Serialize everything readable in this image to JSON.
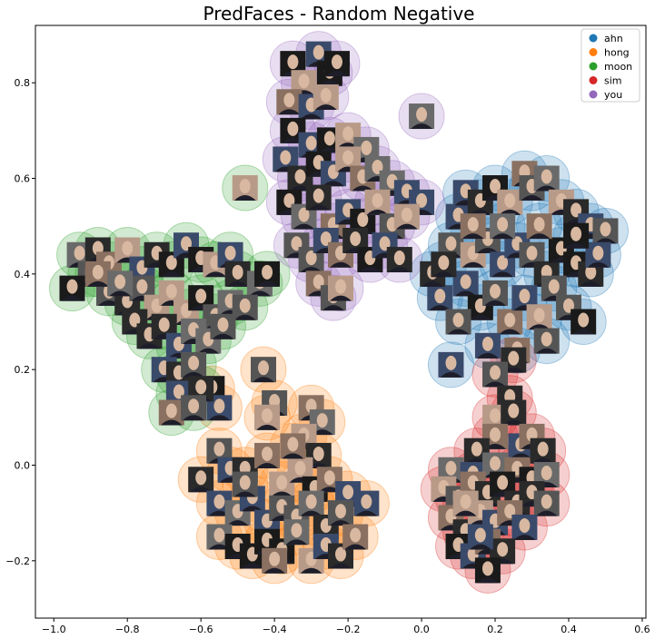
{
  "chart_data": {
    "type": "scatter",
    "title": "PredFaces - Random Negative",
    "xlim": [
      -1.05,
      0.61
    ],
    "ylim": [
      -0.32,
      0.92
    ],
    "x_ticks": [
      -1.0,
      -0.8,
      -0.6,
      -0.4,
      -0.2,
      0.0,
      0.2,
      0.4,
      0.6
    ],
    "y_ticks": [
      -0.2,
      0.0,
      0.2,
      0.4,
      0.6,
      0.8
    ],
    "x_tick_labels": [
      "−1.0",
      "−0.8",
      "−0.6",
      "−0.4",
      "−0.2",
      "0.0",
      "0.2",
      "0.4",
      "0.6"
    ],
    "y_tick_labels": [
      "−0.2",
      "0.0",
      "0.2",
      "0.4",
      "0.6",
      "0.8"
    ],
    "legend_position": "top-right",
    "series": [
      {
        "name": "ahn",
        "color": "#1f77b4",
        "points": [
          [
            0.08,
            0.21
          ],
          [
            0.05,
            0.35
          ],
          [
            0.03,
            0.4
          ],
          [
            0.08,
            0.46
          ],
          [
            0.1,
            0.52
          ],
          [
            0.12,
            0.57
          ],
          [
            0.16,
            0.55
          ],
          [
            0.2,
            0.58
          ],
          [
            0.24,
            0.55
          ],
          [
            0.28,
            0.61
          ],
          [
            0.3,
            0.58
          ],
          [
            0.34,
            0.6
          ],
          [
            0.38,
            0.55
          ],
          [
            0.42,
            0.53
          ],
          [
            0.46,
            0.5
          ],
          [
            0.5,
            0.49
          ],
          [
            0.14,
            0.44
          ],
          [
            0.18,
            0.47
          ],
          [
            0.22,
            0.42
          ],
          [
            0.26,
            0.46
          ],
          [
            0.3,
            0.44
          ],
          [
            0.34,
            0.4
          ],
          [
            0.38,
            0.45
          ],
          [
            0.42,
            0.42
          ],
          [
            0.46,
            0.4
          ],
          [
            0.12,
            0.38
          ],
          [
            0.16,
            0.33
          ],
          [
            0.2,
            0.36
          ],
          [
            0.24,
            0.3
          ],
          [
            0.28,
            0.35
          ],
          [
            0.32,
            0.31
          ],
          [
            0.36,
            0.37
          ],
          [
            0.4,
            0.33
          ],
          [
            0.44,
            0.3
          ],
          [
            0.48,
            0.44
          ],
          [
            0.1,
            0.3
          ],
          [
            0.18,
            0.25
          ],
          [
            0.26,
            0.24
          ],
          [
            0.34,
            0.26
          ],
          [
            0.22,
            0.5
          ],
          [
            0.32,
            0.5
          ],
          [
            0.14,
            0.5
          ],
          [
            0.06,
            0.42
          ],
          [
            0.42,
            0.48
          ]
        ]
      },
      {
        "name": "hong",
        "color": "#ff7f0e",
        "points": [
          [
            -0.43,
            0.2
          ],
          [
            -0.57,
            0.16
          ],
          [
            -0.55,
            0.12
          ],
          [
            -0.4,
            0.13
          ],
          [
            -0.42,
            0.1
          ],
          [
            -0.3,
            0.12
          ],
          [
            -0.27,
            0.09
          ],
          [
            -0.32,
            0.06
          ],
          [
            -0.28,
            0.02
          ],
          [
            -0.55,
            0.03
          ],
          [
            -0.52,
            -0.01
          ],
          [
            -0.6,
            -0.03
          ],
          [
            -0.48,
            -0.01
          ],
          [
            -0.42,
            0.02
          ],
          [
            -0.38,
            -0.04
          ],
          [
            -0.33,
            -0.01
          ],
          [
            -0.29,
            -0.05
          ],
          [
            -0.25,
            -0.03
          ],
          [
            -0.2,
            -0.06
          ],
          [
            -0.15,
            -0.08
          ],
          [
            -0.55,
            -0.08
          ],
          [
            -0.5,
            -0.1
          ],
          [
            -0.46,
            -0.07
          ],
          [
            -0.42,
            -0.12
          ],
          [
            -0.38,
            -0.09
          ],
          [
            -0.34,
            -0.11
          ],
          [
            -0.3,
            -0.08
          ],
          [
            -0.26,
            -0.13
          ],
          [
            -0.22,
            -0.1
          ],
          [
            -0.55,
            -0.15
          ],
          [
            -0.5,
            -0.17
          ],
          [
            -0.46,
            -0.19
          ],
          [
            -0.42,
            -0.16
          ],
          [
            -0.38,
            -0.18
          ],
          [
            -0.34,
            -0.14
          ],
          [
            -0.3,
            -0.2
          ],
          [
            -0.26,
            -0.17
          ],
          [
            -0.22,
            -0.19
          ],
          [
            -0.18,
            -0.15
          ],
          [
            -0.4,
            -0.2
          ],
          [
            -0.48,
            -0.04
          ],
          [
            -0.35,
            0.04
          ]
        ]
      },
      {
        "name": "moon",
        "color": "#2ca02c",
        "points": [
          [
            -0.48,
            0.58
          ],
          [
            -0.93,
            0.44
          ],
          [
            -0.9,
            0.4
          ],
          [
            -0.95,
            0.37
          ],
          [
            -0.88,
            0.45
          ],
          [
            -0.85,
            0.42
          ],
          [
            -0.8,
            0.45
          ],
          [
            -0.76,
            0.41
          ],
          [
            -0.72,
            0.44
          ],
          [
            -0.68,
            0.42
          ],
          [
            -0.64,
            0.46
          ],
          [
            -0.6,
            0.43
          ],
          [
            -0.56,
            0.42
          ],
          [
            -0.52,
            0.44
          ],
          [
            -0.5,
            0.4
          ],
          [
            -0.44,
            0.38
          ],
          [
            -0.42,
            0.4
          ],
          [
            -0.85,
            0.36
          ],
          [
            -0.8,
            0.34
          ],
          [
            -0.76,
            0.37
          ],
          [
            -0.72,
            0.33
          ],
          [
            -0.68,
            0.36
          ],
          [
            -0.64,
            0.32
          ],
          [
            -0.6,
            0.35
          ],
          [
            -0.56,
            0.31
          ],
          [
            -0.52,
            0.34
          ],
          [
            -0.48,
            0.33
          ],
          [
            -0.78,
            0.3
          ],
          [
            -0.74,
            0.27
          ],
          [
            -0.7,
            0.29
          ],
          [
            -0.66,
            0.25
          ],
          [
            -0.62,
            0.28
          ],
          [
            -0.58,
            0.26
          ],
          [
            -0.54,
            0.29
          ],
          [
            -0.7,
            0.2
          ],
          [
            -0.66,
            0.19
          ],
          [
            -0.62,
            0.21
          ],
          [
            -0.66,
            0.15
          ],
          [
            -0.6,
            0.16
          ],
          [
            -0.68,
            0.11
          ],
          [
            -0.62,
            0.12
          ],
          [
            -0.88,
            0.4
          ],
          [
            -0.82,
            0.38
          ]
        ]
      },
      {
        "name": "sim",
        "color": "#d62728",
        "points": [
          [
            0.25,
            0.22
          ],
          [
            0.2,
            0.19
          ],
          [
            0.24,
            0.14
          ],
          [
            0.2,
            0.1
          ],
          [
            0.25,
            0.11
          ],
          [
            0.2,
            0.06
          ],
          [
            0.15,
            0.03
          ],
          [
            0.27,
            0.04
          ],
          [
            0.3,
            0.06
          ],
          [
            0.33,
            0.03
          ],
          [
            0.08,
            -0.01
          ],
          [
            0.14,
            -0.02
          ],
          [
            0.2,
            0.0
          ],
          [
            0.26,
            -0.01
          ],
          [
            0.3,
            -0.03
          ],
          [
            0.34,
            -0.02
          ],
          [
            0.06,
            -0.05
          ],
          [
            0.1,
            -0.07
          ],
          [
            0.14,
            -0.04
          ],
          [
            0.18,
            -0.06
          ],
          [
            0.22,
            -0.04
          ],
          [
            0.26,
            -0.08
          ],
          [
            0.3,
            -0.06
          ],
          [
            0.34,
            -0.08
          ],
          [
            0.08,
            -0.11
          ],
          [
            0.12,
            -0.14
          ],
          [
            0.16,
            -0.1
          ],
          [
            0.2,
            -0.12
          ],
          [
            0.24,
            -0.1
          ],
          [
            0.28,
            -0.13
          ],
          [
            0.1,
            -0.17
          ],
          [
            0.14,
            -0.19
          ],
          [
            0.18,
            -0.16
          ],
          [
            0.22,
            -0.18
          ],
          [
            0.18,
            -0.22
          ],
          [
            0.12,
            -0.08
          ],
          [
            0.16,
            -0.15
          ]
        ]
      },
      {
        "name": "you",
        "color": "#9467bd",
        "points": [
          [
            -0.35,
            0.84
          ],
          [
            -0.32,
            0.8
          ],
          [
            -0.28,
            0.86
          ],
          [
            -0.25,
            0.82
          ],
          [
            -0.23,
            0.84
          ],
          [
            -0.36,
            0.76
          ],
          [
            -0.3,
            0.75
          ],
          [
            -0.26,
            0.77
          ],
          [
            0.0,
            0.73
          ],
          [
            -0.35,
            0.7
          ],
          [
            -0.3,
            0.67
          ],
          [
            -0.25,
            0.68
          ],
          [
            -0.2,
            0.69
          ],
          [
            -0.15,
            0.66
          ],
          [
            -0.37,
            0.64
          ],
          [
            -0.33,
            0.6
          ],
          [
            -0.28,
            0.63
          ],
          [
            -0.24,
            0.61
          ],
          [
            -0.2,
            0.64
          ],
          [
            -0.16,
            0.6
          ],
          [
            -0.12,
            0.62
          ],
          [
            -0.08,
            0.59
          ],
          [
            -0.04,
            0.57
          ],
          [
            0.0,
            0.55
          ],
          [
            -0.36,
            0.55
          ],
          [
            -0.32,
            0.52
          ],
          [
            -0.28,
            0.56
          ],
          [
            -0.24,
            0.5
          ],
          [
            -0.2,
            0.53
          ],
          [
            -0.16,
            0.51
          ],
          [
            -0.12,
            0.55
          ],
          [
            -0.08,
            0.5
          ],
          [
            -0.04,
            0.52
          ],
          [
            -0.34,
            0.46
          ],
          [
            -0.3,
            0.43
          ],
          [
            -0.26,
            0.47
          ],
          [
            -0.22,
            0.44
          ],
          [
            -0.18,
            0.47
          ],
          [
            -0.14,
            0.43
          ],
          [
            -0.1,
            0.46
          ],
          [
            -0.06,
            0.43
          ],
          [
            -0.28,
            0.38
          ],
          [
            -0.24,
            0.35
          ],
          [
            -0.22,
            0.37
          ]
        ]
      }
    ]
  }
}
